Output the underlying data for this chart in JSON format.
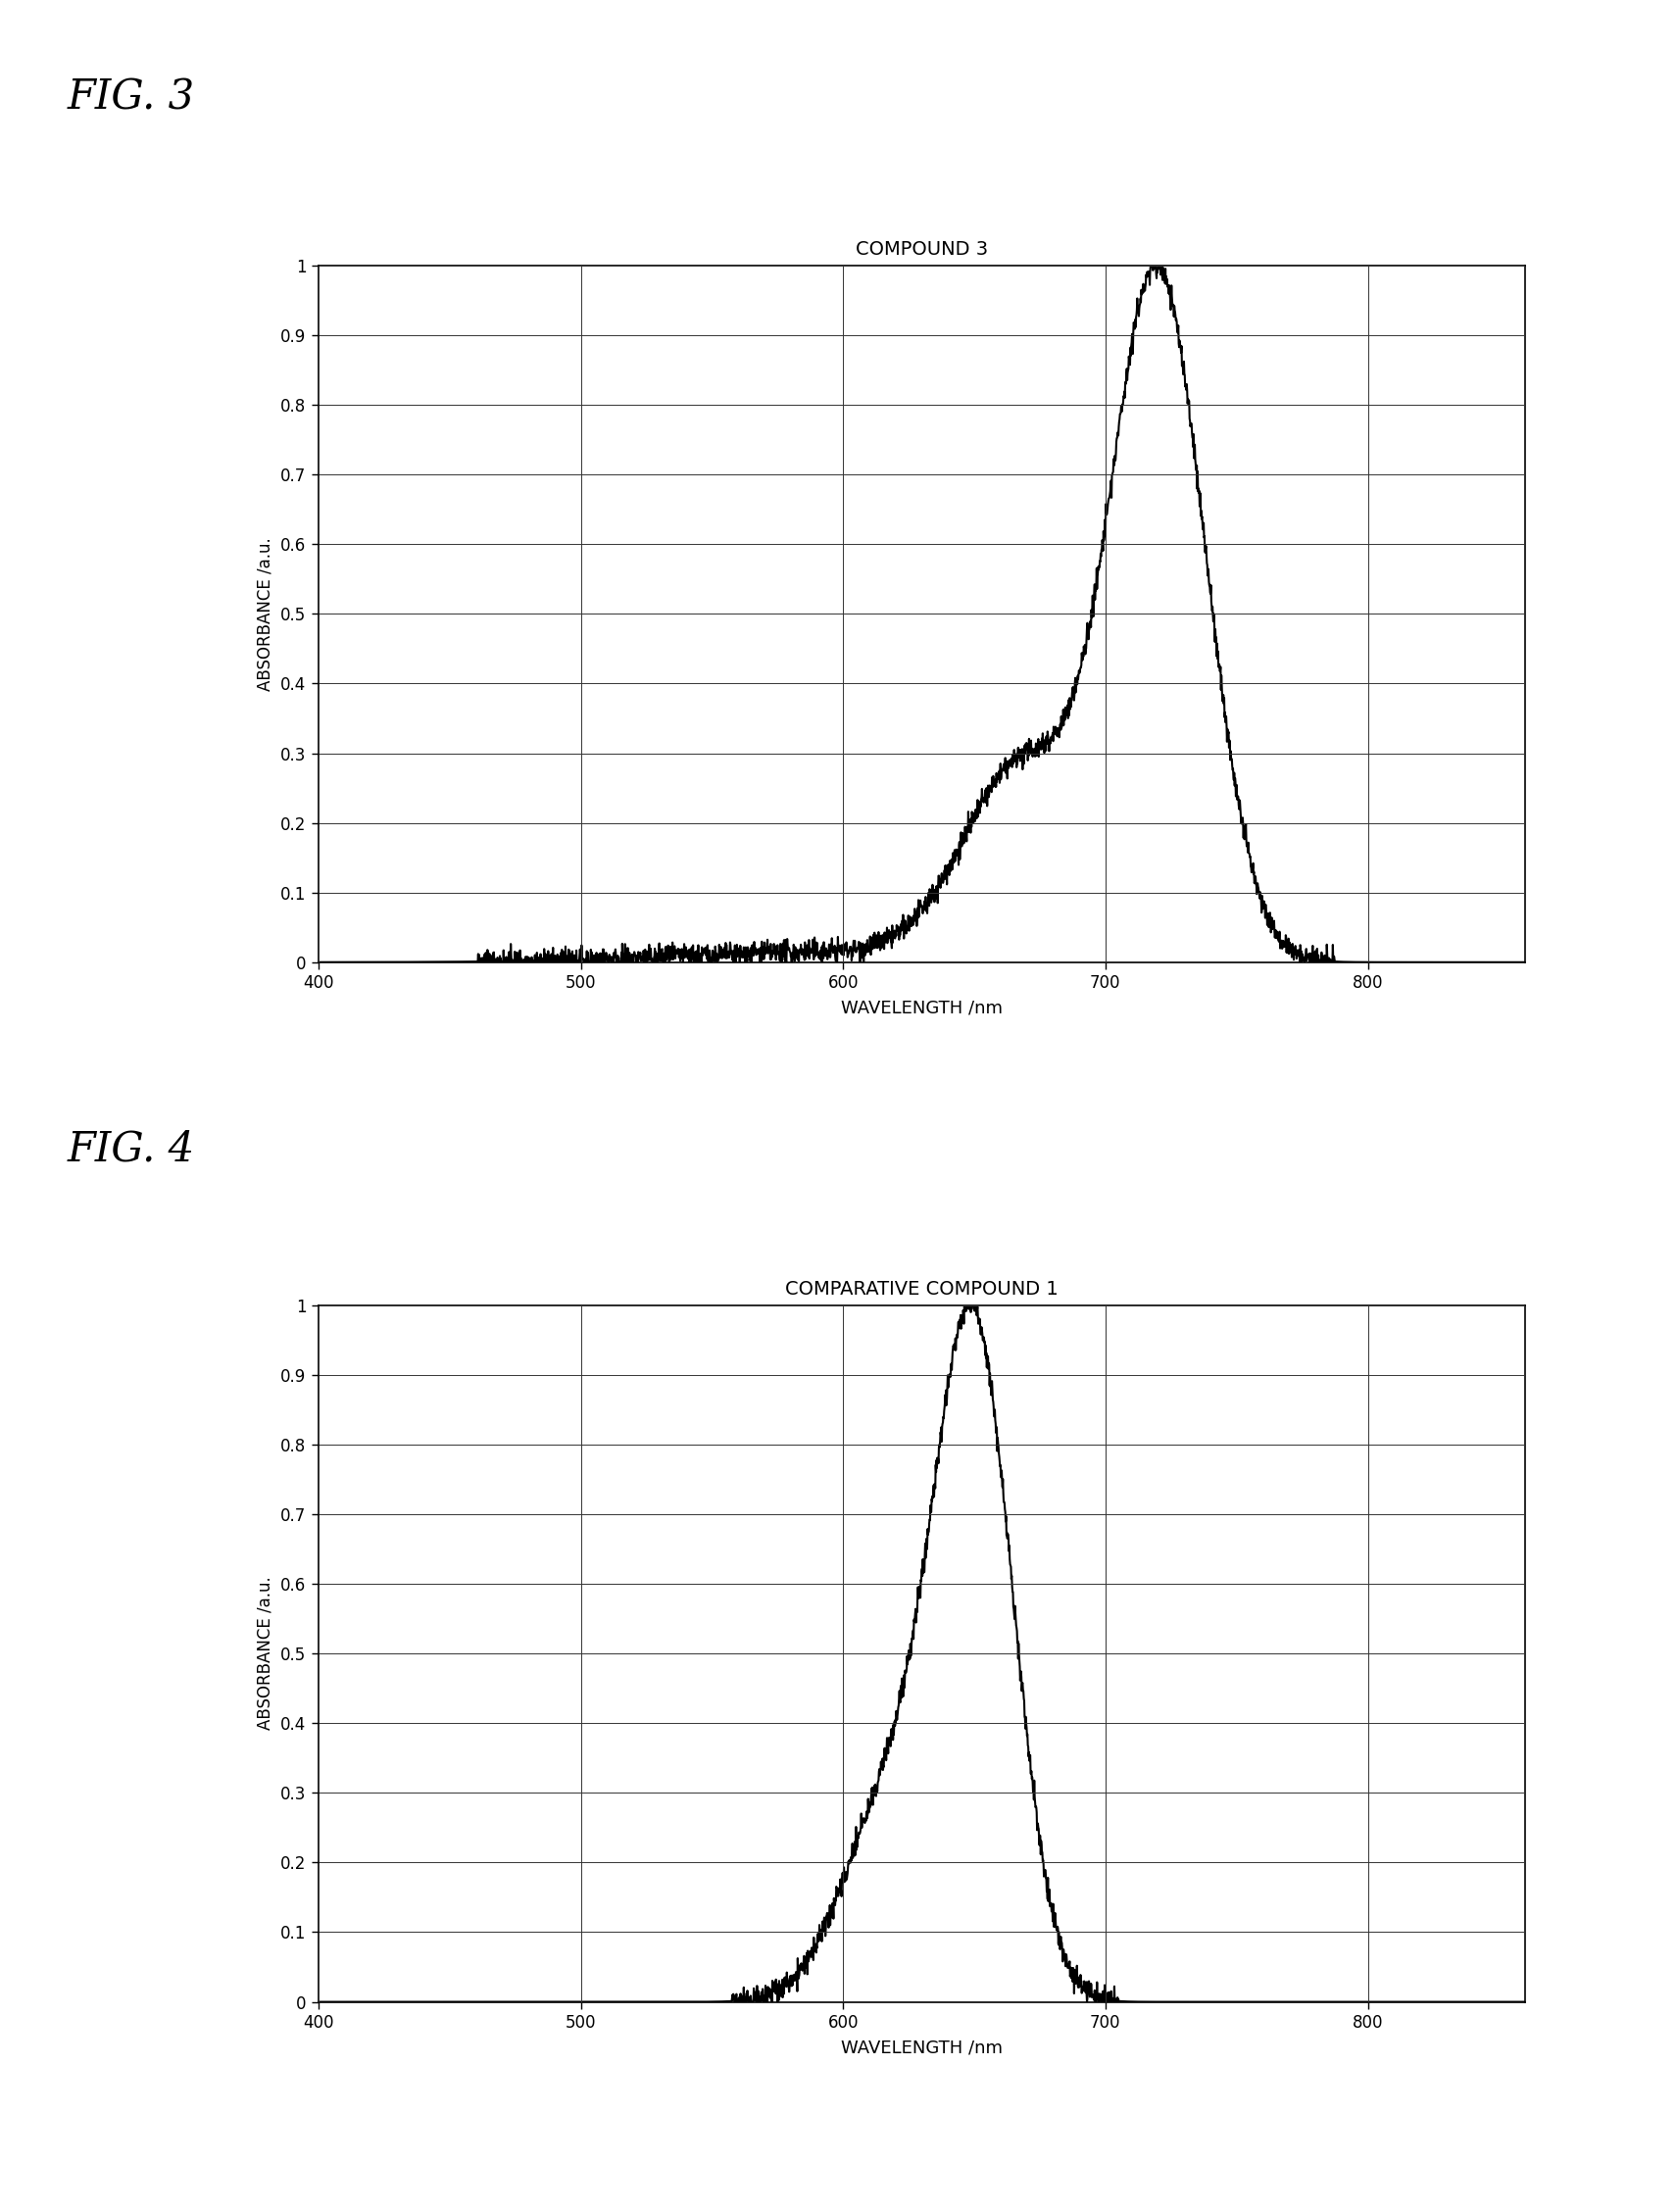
{
  "fig3_title": "COMPOUND 3",
  "fig4_title": "COMPARATIVE COMPOUND 1",
  "fig3_label": "FIG. 3",
  "fig4_label": "FIG. 4",
  "xlabel": "WAVELENGTH /nm",
  "ylabel": "ABSORBANCE /a.u.",
  "xlim": [
    400,
    860
  ],
  "ylim": [
    0,
    1.0
  ],
  "xticks": [
    400,
    500,
    600,
    700,
    800
  ],
  "yticks": [
    0,
    0.1,
    0.2,
    0.3,
    0.4,
    0.5,
    0.6,
    0.7,
    0.8,
    0.9,
    1
  ],
  "line_color": "#000000",
  "background_color": "#ffffff",
  "noise_seed_fig3": 42,
  "noise_seed_fig4": 99
}
